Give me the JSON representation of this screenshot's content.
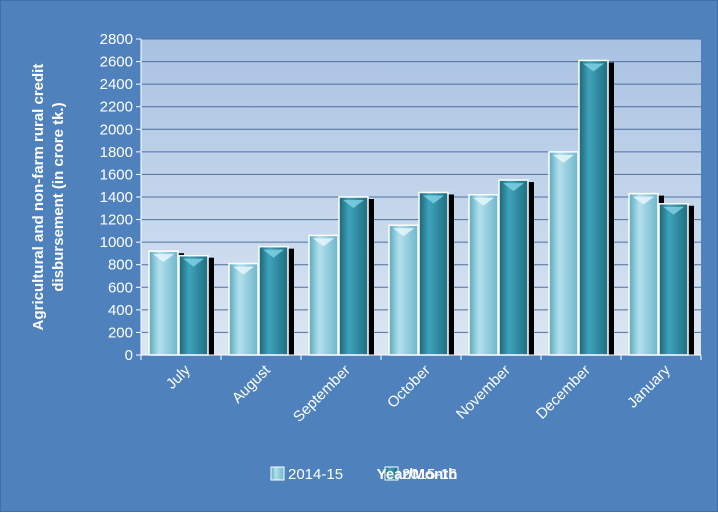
{
  "chart_data": {
    "type": "bar",
    "categories": [
      "July",
      "August",
      "September",
      "October",
      "November",
      "December",
      "January"
    ],
    "series": [
      {
        "name": "2014-15",
        "values": [
          920,
          810,
          1060,
          1150,
          1420,
          1800,
          1430
        ]
      },
      {
        "name": "2015-16",
        "values": [
          880,
          960,
          1400,
          1440,
          1550,
          2610,
          1340
        ]
      }
    ],
    "xlabel": "Year/Month",
    "ylabel_lines": [
      "Agricultural and non-farm rural credit",
      "disbursement (in crore tk.)"
    ],
    "ylim": [
      0,
      2800
    ],
    "yticks": [
      0,
      200,
      400,
      600,
      800,
      1000,
      1200,
      1400,
      1600,
      1800,
      2000,
      2200,
      2400,
      2600,
      2800
    ],
    "grid": true,
    "legend_position": "bottom",
    "colors": {
      "background": "#4f81bd",
      "plot_area": "#b9cde5",
      "series_1": "#92cddc",
      "series_2": "#31859c",
      "gridline": "#4f6fa0"
    }
  }
}
